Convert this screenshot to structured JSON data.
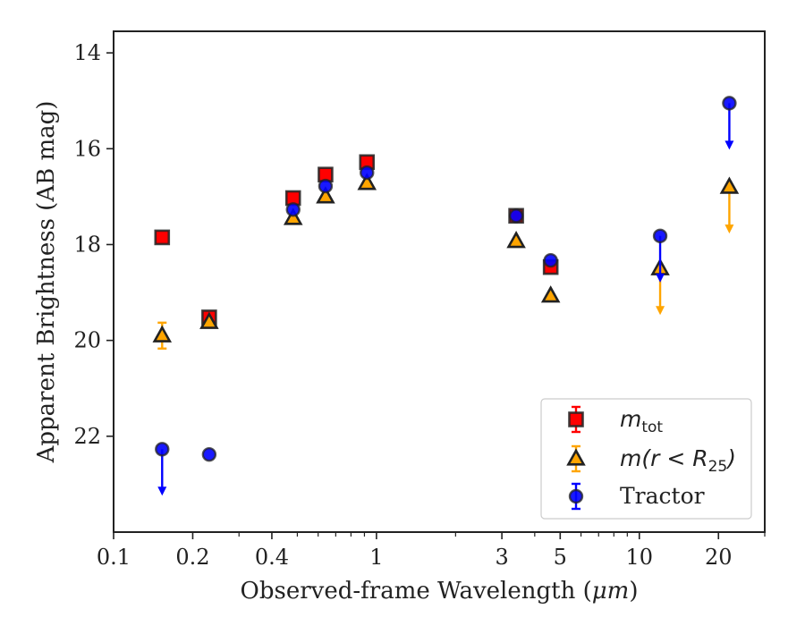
{
  "chart_data": {
    "type": "scatter",
    "title": "",
    "xlabel_prefix": "Observed-frame Wavelength (",
    "xlabel_unit": "μm",
    "xlabel_suffix": ")",
    "ylabel": "Apparent Brightness (AB mag)",
    "xscale": "log",
    "xlim": [
      0.1,
      30
    ],
    "ylim": [
      24.0,
      13.55
    ],
    "y_inverted": true,
    "xticks": [
      {
        "value": 0.1,
        "label": "0.1"
      },
      {
        "value": 0.2,
        "label": "0.2"
      },
      {
        "value": 0.4,
        "label": "0.4"
      },
      {
        "value": 1,
        "label": "1"
      },
      {
        "value": 3,
        "label": "3"
      },
      {
        "value": 5,
        "label": "5"
      },
      {
        "value": 10,
        "label": "10"
      },
      {
        "value": 20,
        "label": "20"
      }
    ],
    "xminor": [
      0.3,
      0.5,
      0.6,
      0.7,
      0.8,
      0.9,
      2,
      4,
      6,
      7,
      8,
      9,
      30
    ],
    "yticks": [
      {
        "value": 14,
        "label": "14"
      },
      {
        "value": 16,
        "label": "16"
      },
      {
        "value": 18,
        "label": "18"
      },
      {
        "value": 20,
        "label": "20"
      },
      {
        "value": 22,
        "label": "22"
      }
    ],
    "grid": false,
    "legend": {
      "position": "lower-right",
      "entries": [
        {
          "series": "m_tot",
          "base": "m",
          "sub": "tot"
        },
        {
          "series": "m_r25",
          "text": "m(r < R",
          "sub": "25",
          "close": ")"
        },
        {
          "series": "tractor",
          "text": "Tractor"
        }
      ]
    },
    "series": [
      {
        "key": "m_tot",
        "marker": "square",
        "color": "#ff0000",
        "errcolor": "#ff0000",
        "points": [
          {
            "x": 0.153,
            "y": 17.85
          },
          {
            "x": 0.231,
            "y": 19.52
          },
          {
            "x": 0.482,
            "y": 17.03
          },
          {
            "x": 0.64,
            "y": 16.54
          },
          {
            "x": 0.92,
            "y": 16.28
          },
          {
            "x": 3.4,
            "y": 17.4
          },
          {
            "x": 4.6,
            "y": 18.47
          }
        ]
      },
      {
        "key": "m_r25",
        "marker": "triangle",
        "color": "#ffa500",
        "errcolor": "#ffa500",
        "points": [
          {
            "x": 0.153,
            "y": 19.9,
            "err": 0.27
          },
          {
            "x": 0.231,
            "y": 19.62
          },
          {
            "x": 0.482,
            "y": 17.45
          },
          {
            "x": 0.64,
            "y": 17.0
          },
          {
            "x": 0.92,
            "y": 16.72
          },
          {
            "x": 3.4,
            "y": 17.93
          },
          {
            "x": 4.6,
            "y": 19.07
          },
          {
            "x": 12.0,
            "y": 18.5,
            "upper_limit": true
          },
          {
            "x": 22.0,
            "y": 16.8,
            "upper_limit": true
          }
        ]
      },
      {
        "key": "tractor",
        "marker": "circle",
        "color": "#0000ff",
        "errcolor": "#0000ff",
        "points": [
          {
            "x": 0.153,
            "y": 22.27,
            "upper_limit": true
          },
          {
            "x": 0.231,
            "y": 22.38
          },
          {
            "x": 0.482,
            "y": 17.27
          },
          {
            "x": 0.64,
            "y": 16.78
          },
          {
            "x": 0.92,
            "y": 16.5
          },
          {
            "x": 3.4,
            "y": 17.4
          },
          {
            "x": 4.6,
            "y": 18.33
          },
          {
            "x": 12.0,
            "y": 17.82,
            "upper_limit": true
          },
          {
            "x": 22.0,
            "y": 15.05,
            "upper_limit": true
          }
        ]
      }
    ]
  }
}
